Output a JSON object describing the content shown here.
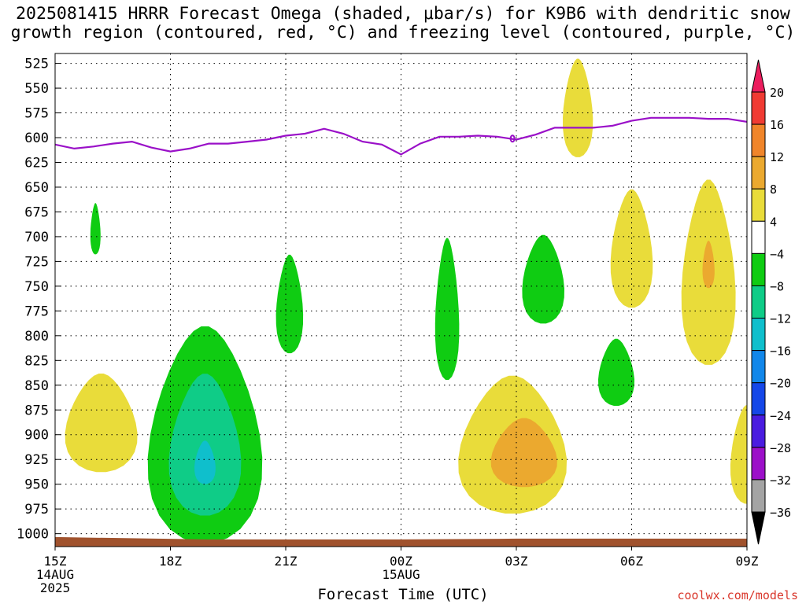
{
  "title_line1": "2025081415 HRRR Forecast Omega (shaded, μbar/s) for K9B6 with dendritic snow",
  "title_line2": "growth region (contoured, red, °C) and freezing level (contoured, purple, °C)",
  "credit": "coolwx.com/models",
  "chart_data": {
    "type": "contour-timeheight",
    "xlabel": "Forecast Time (UTC)",
    "ylabel": "",
    "x_units": "hours since 2025-08-14 15Z",
    "xlim": [
      0,
      18
    ],
    "ylim": [
      1013,
      515
    ],
    "x_ticks": [
      {
        "x": 0,
        "label": "15Z",
        "sub1": "14AUG",
        "sub2": "2025"
      },
      {
        "x": 3,
        "label": "18Z",
        "sub1": "",
        "sub2": ""
      },
      {
        "x": 6,
        "label": "21Z",
        "sub1": "",
        "sub2": ""
      },
      {
        "x": 9,
        "label": "00Z",
        "sub1": "15AUG",
        "sub2": ""
      },
      {
        "x": 12,
        "label": "03Z",
        "sub1": "",
        "sub2": ""
      },
      {
        "x": 15,
        "label": "06Z",
        "sub1": "",
        "sub2": ""
      },
      {
        "x": 18,
        "label": "09Z",
        "sub1": "",
        "sub2": ""
      }
    ],
    "y_ticks": [
      525,
      550,
      575,
      600,
      625,
      650,
      675,
      700,
      725,
      750,
      775,
      800,
      825,
      850,
      875,
      900,
      925,
      950,
      975,
      1000
    ],
    "grid": true,
    "colorbar": {
      "labels": [
        "20",
        "16",
        "12",
        "8",
        "4",
        "−4",
        "−8",
        "−12",
        "−16",
        "−20",
        "−24",
        "−28",
        "−32",
        "−36"
      ],
      "colors": [
        "#ec1d5e",
        "#f03b33",
        "#f0852a",
        "#eba92f",
        "#e9dc3a",
        "#ffffff",
        "#0fcc12",
        "#0fcc87",
        "#0fbfcc",
        "#1187ea",
        "#1547e8",
        "#4a1ce0",
        "#9c10c9",
        "#a4a4a4",
        "#000000"
      ]
    },
    "freezing_level": {
      "color": "#9a10c8",
      "x": [
        0,
        0.5,
        1,
        1.5,
        2,
        2.5,
        3,
        3.5,
        4,
        4.5,
        5,
        5.5,
        6,
        6.5,
        7,
        7.5,
        8,
        8.5,
        9,
        9.5,
        10,
        10.5,
        11,
        11.5,
        12,
        12.5,
        13,
        13.5,
        14,
        14.5,
        15,
        15.5,
        16,
        16.5,
        17,
        17.5,
        18
      ],
      "p": [
        607,
        611,
        609,
        606,
        604,
        610,
        614,
        611,
        606,
        606,
        604,
        602,
        598,
        596,
        591,
        596,
        604,
        607,
        617,
        606,
        599,
        599,
        598,
        599,
        602,
        597,
        590,
        590,
        590,
        588,
        583,
        580,
        580,
        580,
        581,
        581,
        584
      ]
    },
    "omega_regions": [
      {
        "value_range": [
          4,
          8
        ],
        "color": "#e9dc3a",
        "center": [
          13.6,
          570
        ],
        "half_width_h": 0.5,
        "half_height": 50
      },
      {
        "value_range": [
          -8,
          -4
        ],
        "color": "#0fcc12",
        "center": [
          1.05,
          692
        ],
        "half_width_h": 0.17,
        "half_height": 26
      },
      {
        "value_range": [
          -8,
          -4
        ],
        "color": "#0fcc12",
        "center": [
          6.1,
          768
        ],
        "half_width_h": 0.45,
        "half_height": 50
      },
      {
        "value_range": [
          -8,
          -4
        ],
        "color": "#0fcc12",
        "center": [
          10.2,
          773
        ],
        "half_width_h": 0.4,
        "half_height": 72
      },
      {
        "value_range": [
          -8,
          -4
        ],
        "color": "#0fcc12",
        "center": [
          12.7,
          743
        ],
        "half_width_h": 0.7,
        "half_height": 45
      },
      {
        "value_range": [
          -8,
          -4
        ],
        "color": "#0fcc12",
        "center": [
          14.6,
          837
        ],
        "half_width_h": 0.6,
        "half_height": 34
      },
      {
        "value_range": [
          -8,
          -4
        ],
        "color": "#0fcc12",
        "center": [
          3.9,
          900
        ],
        "half_width_h": 1.9,
        "half_height": 110
      },
      {
        "value_range": [
          -12,
          -8
        ],
        "color": "#0fcc87",
        "center": [
          3.9,
          910
        ],
        "half_width_h": 1.2,
        "half_height": 72
      },
      {
        "value_range": [
          -16,
          -12
        ],
        "color": "#0fbfcc",
        "center": [
          3.9,
          928
        ],
        "half_width_h": 0.35,
        "half_height": 22
      },
      {
        "value_range": [
          4,
          8
        ],
        "color": "#e9dc3a",
        "center": [
          1.2,
          888
        ],
        "half_width_h": 1.2,
        "half_height": 50
      },
      {
        "value_range": [
          4,
          8
        ],
        "color": "#e9dc3a",
        "center": [
          11.9,
          910
        ],
        "half_width_h": 1.8,
        "half_height": 70
      },
      {
        "value_range": [
          8,
          12
        ],
        "color": "#eba92f",
        "center": [
          12.2,
          918
        ],
        "half_width_h": 1.1,
        "half_height": 35
      },
      {
        "value_range": [
          4,
          8
        ],
        "color": "#e9dc3a",
        "center": [
          15.0,
          712
        ],
        "half_width_h": 0.7,
        "half_height": 60
      },
      {
        "value_range": [
          4,
          8
        ],
        "color": "#e9dc3a",
        "center": [
          17.0,
          736
        ],
        "half_width_h": 0.9,
        "half_height": 94
      },
      {
        "value_range": [
          8,
          12
        ],
        "color": "#eba92f",
        "center": [
          17.0,
          728
        ],
        "half_width_h": 0.2,
        "half_height": 24
      },
      {
        "value_range": [
          4,
          8
        ],
        "color": "#e9dc3a",
        "center": [
          18.0,
          920
        ],
        "half_width_h": 0.55,
        "half_height": 50
      }
    ],
    "terrain": {
      "color": "#a0522d",
      "pressure_top": 1005
    }
  }
}
